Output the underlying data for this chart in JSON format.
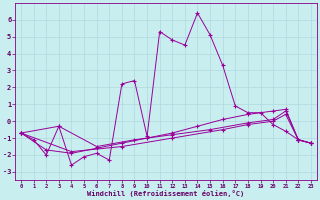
{
  "xlabel": "Windchill (Refroidissement éolien,°C)",
  "background_color": "#c8eef0",
  "grid_color": "#b0d8dc",
  "line_color": "#990099",
  "xlim": [
    -0.5,
    23.5
  ],
  "ylim": [
    -3.5,
    7.0
  ],
  "xticks": [
    0,
    1,
    2,
    3,
    4,
    5,
    6,
    7,
    8,
    9,
    10,
    11,
    12,
    13,
    14,
    15,
    16,
    17,
    18,
    19,
    20,
    21,
    22,
    23
  ],
  "yticks": [
    -3,
    -2,
    -1,
    0,
    1,
    2,
    3,
    4,
    5,
    6
  ],
  "series": [
    {
      "points": [
        [
          0,
          -0.7
        ],
        [
          1,
          -1.1
        ],
        [
          2,
          -2.0
        ],
        [
          3,
          -0.3
        ],
        [
          4,
          -2.6
        ],
        [
          5,
          -2.1
        ],
        [
          6,
          -1.9
        ],
        [
          7,
          -2.3
        ],
        [
          8,
          2.2
        ],
        [
          9,
          2.4
        ],
        [
          10,
          -0.9
        ],
        [
          11,
          5.3
        ],
        [
          12,
          4.8
        ],
        [
          13,
          4.5
        ],
        [
          14,
          6.4
        ],
        [
          15,
          5.1
        ],
        [
          16,
          3.3
        ],
        [
          17,
          0.9
        ],
        [
          18,
          0.5
        ],
        [
          19,
          0.5
        ],
        [
          20,
          -0.2
        ],
        [
          21,
          -0.6
        ],
        [
          22,
          -1.1
        ],
        [
          23,
          -1.3
        ]
      ],
      "marker": "+"
    },
    {
      "points": [
        [
          0,
          -0.7
        ],
        [
          3,
          -0.3
        ],
        [
          6,
          -1.5
        ],
        [
          9,
          -1.1
        ],
        [
          12,
          -0.8
        ],
        [
          15,
          -0.5
        ],
        [
          18,
          -0.1
        ],
        [
          20,
          0.1
        ],
        [
          21,
          0.6
        ],
        [
          22,
          -1.1
        ],
        [
          23,
          -1.3
        ]
      ],
      "marker": "+"
    },
    {
      "points": [
        [
          0,
          -0.7
        ],
        [
          2,
          -1.7
        ],
        [
          4,
          -1.9
        ],
        [
          6,
          -1.6
        ],
        [
          8,
          -1.3
        ],
        [
          10,
          -1.0
        ],
        [
          12,
          -0.7
        ],
        [
          14,
          -0.3
        ],
        [
          16,
          0.1
        ],
        [
          18,
          0.4
        ],
        [
          20,
          0.6
        ],
        [
          21,
          0.7
        ],
        [
          22,
          -1.1
        ],
        [
          23,
          -1.3
        ]
      ],
      "marker": "+"
    },
    {
      "points": [
        [
          0,
          -0.7
        ],
        [
          4,
          -1.8
        ],
        [
          8,
          -1.5
        ],
        [
          12,
          -1.0
        ],
        [
          16,
          -0.5
        ],
        [
          18,
          -0.2
        ],
        [
          20,
          0.0
        ],
        [
          21,
          0.4
        ],
        [
          22,
          -1.1
        ],
        [
          23,
          -1.3
        ]
      ],
      "marker": "+"
    }
  ]
}
